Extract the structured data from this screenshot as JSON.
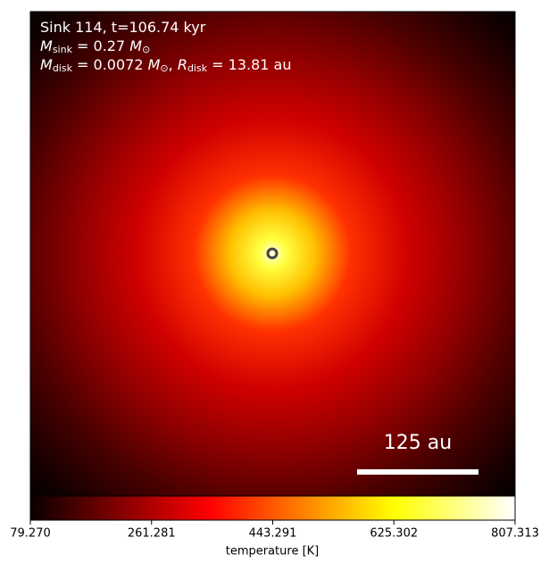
{
  "chart_data": {
    "type": "heatmap",
    "annotations": [
      [
        {
          "text": "Sink 114, t=106.74 kyr"
        }
      ],
      [
        {
          "text": "M",
          "italic": true
        },
        {
          "text": "sink",
          "sub": true
        },
        {
          "text": " = 0.27 "
        },
        {
          "text": "M",
          "italic": true
        },
        {
          "text": "⊙",
          "sub": true
        }
      ],
      [
        {
          "text": "M",
          "italic": true
        },
        {
          "text": "disk",
          "sub": true
        },
        {
          "text": " = 0.0072 "
        },
        {
          "text": "M",
          "italic": true
        },
        {
          "text": "⊙",
          "sub": true
        },
        {
          "text": ", "
        },
        {
          "text": "R",
          "italic": true
        },
        {
          "text": "disk",
          "sub": true
        },
        {
          "text": " = 13.81 au"
        }
      ]
    ],
    "scale_bar": "125 au",
    "colorbar": {
      "label": "temperature [K]",
      "lim": [
        79.27,
        807.313
      ],
      "ticks": [
        {
          "value": 79.27,
          "label": "79.270"
        },
        {
          "value": 261.281,
          "label": "261.281"
        },
        {
          "value": 443.291,
          "label": "443.291"
        },
        {
          "value": 625.302,
          "label": "625.302"
        },
        {
          "value": 807.313,
          "label": "807.313"
        }
      ]
    }
  }
}
